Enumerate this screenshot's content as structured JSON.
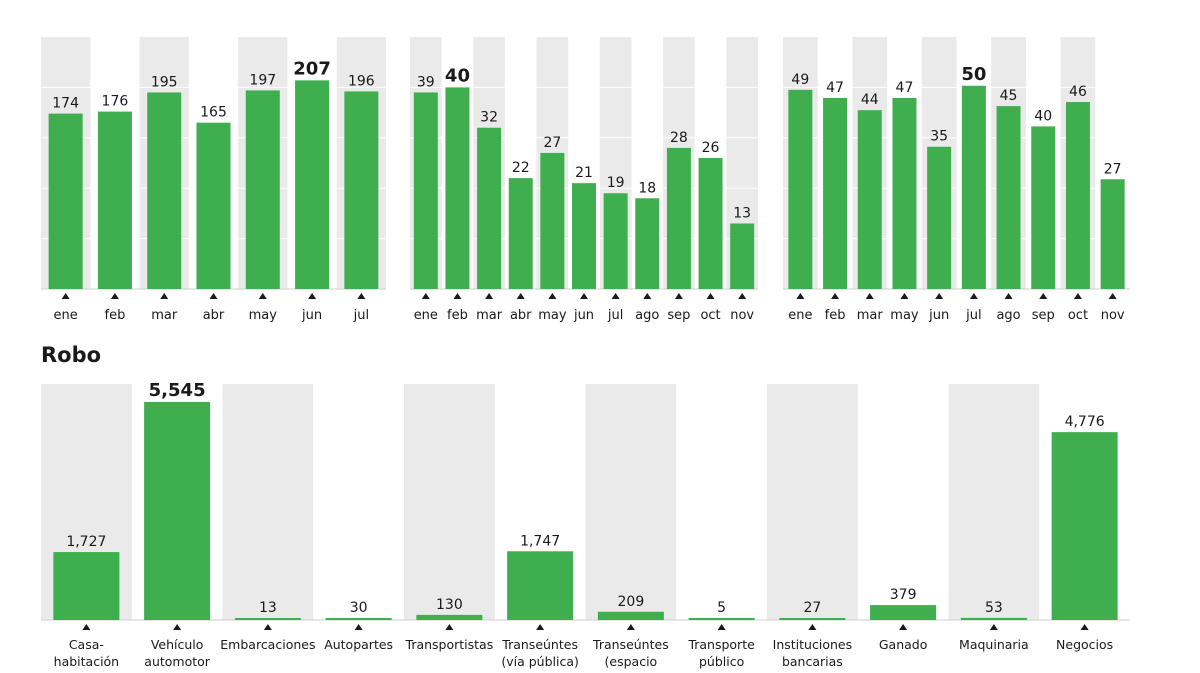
{
  "colors": {
    "bar": "#3fae4f",
    "stripe": "#eaeaea",
    "grid": "#ffffff",
    "text": "#1a1a1a"
  },
  "section_title": "Robo",
  "chart_data": [
    {
      "type": "bar",
      "categories": [
        "ene",
        "feb",
        "mar",
        "abr",
        "may",
        "jun",
        "jul"
      ],
      "values": [
        174,
        176,
        195,
        165,
        197,
        207,
        196
      ],
      "highlight": "jun",
      "title": "",
      "xlabel": "",
      "ylabel": "",
      "ylim": [
        0,
        250
      ],
      "grid": true,
      "stripes": true
    },
    {
      "type": "bar",
      "categories": [
        "ene",
        "feb",
        "mar",
        "abr",
        "may",
        "jun",
        "jul",
        "ago",
        "sep",
        "oct",
        "nov"
      ],
      "values": [
        39,
        40,
        32,
        22,
        27,
        21,
        19,
        18,
        28,
        26,
        13
      ],
      "highlight": "feb",
      "title": "",
      "xlabel": "",
      "ylabel": "",
      "ylim": [
        0,
        50
      ],
      "grid": true,
      "stripes": true
    },
    {
      "type": "bar",
      "categories": [
        "ene",
        "feb",
        "mar",
        "may",
        "jun",
        "jul",
        "ago",
        "sep",
        "oct",
        "nov"
      ],
      "values": [
        49,
        47,
        44,
        47,
        35,
        50,
        45,
        40,
        46,
        27
      ],
      "highlight": "jul",
      "title": "",
      "xlabel": "",
      "ylabel": "",
      "ylim": [
        0,
        62
      ],
      "grid": true,
      "stripes": true
    },
    {
      "type": "bar",
      "title": "Robo",
      "categories": [
        [
          "Casa-",
          "habitación"
        ],
        [
          "Vehículo",
          "automotor"
        ],
        [
          "Embarcaciones"
        ],
        [
          "Autopartes"
        ],
        [
          "Transportistas"
        ],
        [
          "Transeúntes",
          "(vía pública)"
        ],
        [
          "Transeúntes",
          "(espacio"
        ],
        [
          "Transporte",
          "público"
        ],
        [
          "Instituciones",
          "bancarias"
        ],
        [
          "Ganado"
        ],
        [
          "Maquinaria"
        ],
        [
          "Negocios"
        ]
      ],
      "values": [
        1727,
        5545,
        13,
        30,
        130,
        1747,
        209,
        5,
        27,
        379,
        53,
        4776
      ],
      "value_labels": [
        "1,727",
        "5,545",
        "13",
        "30",
        "130",
        "1,747",
        "209",
        "5",
        "27",
        "379",
        "53",
        "4,776"
      ],
      "highlight": "Vehículo automotor",
      "xlabel": "",
      "ylabel": "",
      "ylim": [
        0,
        6000
      ],
      "grid": false,
      "stripes": true
    }
  ]
}
